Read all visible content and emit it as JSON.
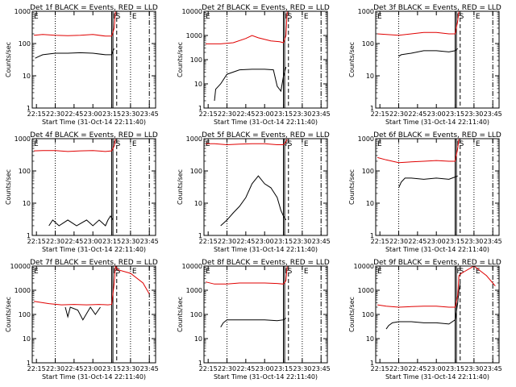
{
  "figure": {
    "ylabel": "Counts/sec",
    "xlabel": "Start Time (31-Oct-14 22:11:40)",
    "x_ticks": [
      "22:15",
      "22:30",
      "22:45",
      "23:00",
      "23:15",
      "23:30",
      "23:45"
    ],
    "y_ticks_3": [
      "1",
      "10",
      "100",
      "1000"
    ],
    "y_ticks_4": [
      "1",
      "10",
      "100",
      "1000",
      "10000"
    ],
    "marker_labels": [
      "E",
      "F",
      "S",
      "E"
    ],
    "colors": {
      "events": "#000000",
      "lld": "#e00000",
      "axes": "#000000"
    }
  },
  "chart_data": [
    {
      "type": "line",
      "title": "Det 1f BLACK = Events, RED = LLD",
      "y_scale": "log",
      "ylim": [
        1,
        1000
      ],
      "xlim": [
        "22:11:40",
        "23:50:00"
      ],
      "series": [
        {
          "name": "Events",
          "color": "#000000",
          "x": [
            "22:14",
            "22:17",
            "22:20",
            "22:30",
            "22:40",
            "22:50",
            "23:00",
            "23:10",
            "23:15",
            "23:16",
            "23:17"
          ],
          "y": [
            35,
            40,
            45,
            50,
            50,
            52,
            50,
            45,
            45,
            60,
            70
          ]
        },
        {
          "name": "LLD",
          "color": "#e00000",
          "x": [
            "22:13",
            "22:20",
            "22:30",
            "22:40",
            "22:50",
            "23:00",
            "23:10",
            "23:15",
            "23:17",
            "23:18",
            "23:19"
          ],
          "y": [
            180,
            190,
            180,
            175,
            180,
            190,
            170,
            170,
            300,
            1000,
            1000
          ]
        }
      ]
    },
    {
      "type": "line",
      "title": "Det 2f BLACK = Events, RED = LLD",
      "y_scale": "log",
      "ylim": [
        1,
        10000
      ],
      "xlim": [
        "22:11:40",
        "23:50:00"
      ],
      "series": [
        {
          "name": "Events",
          "color": "#000000",
          "x": [
            "22:20",
            "22:21",
            "22:25",
            "22:30",
            "22:40",
            "22:50",
            "23:00",
            "23:07",
            "23:10",
            "23:13",
            "23:15",
            "23:17"
          ],
          "y": [
            2,
            6,
            10,
            25,
            38,
            40,
            40,
            38,
            8,
            5,
            20,
            50
          ]
        },
        {
          "name": "LLD",
          "color": "#e00000",
          "x": [
            "22:13",
            "22:25",
            "22:35",
            "22:45",
            "22:50",
            "22:55",
            "23:05",
            "23:12",
            "23:15",
            "23:17",
            "23:18",
            "23:19"
          ],
          "y": [
            450,
            450,
            500,
            750,
            1000,
            800,
            600,
            550,
            500,
            1000,
            10000,
            10000
          ]
        }
      ]
    },
    {
      "type": "line",
      "title": "Det 3f BLACK = Events, RED = LLD",
      "y_scale": "log",
      "ylim": [
        1,
        1000
      ],
      "xlim": [
        "22:11:40",
        "23:50:00"
      ],
      "series": [
        {
          "name": "Events",
          "color": "#000000",
          "x": [
            "22:30",
            "22:32",
            "22:40",
            "22:50",
            "23:00",
            "23:10",
            "23:15",
            "23:17"
          ],
          "y": [
            40,
            45,
            50,
            60,
            60,
            55,
            60,
            70
          ]
        },
        {
          "name": "LLD",
          "color": "#e00000",
          "x": [
            "22:13",
            "22:20",
            "22:30",
            "22:40",
            "22:50",
            "23:00",
            "23:10",
            "23:15",
            "23:17",
            "23:18",
            "23:19"
          ],
          "y": [
            200,
            190,
            180,
            200,
            220,
            220,
            200,
            200,
            500,
            1000,
            1000
          ]
        }
      ]
    },
    {
      "type": "line",
      "title": "Det 4f BLACK = Events, RED = LLD",
      "y_scale": "log",
      "ylim": [
        1,
        1000
      ],
      "xlim": [
        "22:11:40",
        "23:50:00"
      ],
      "series": [
        {
          "name": "Events",
          "color": "#000000",
          "x": [
            "22:25",
            "22:28",
            "22:33",
            "22:40",
            "22:47",
            "22:55",
            "23:00",
            "23:05",
            "23:10",
            "23:12",
            "23:14",
            "23:16"
          ],
          "y": [
            2,
            3,
            2,
            3,
            2,
            3,
            2,
            3,
            2,
            3,
            4,
            3
          ]
        },
        {
          "name": "LLD",
          "color": "#e00000",
          "x": [
            "22:13",
            "22:20",
            "22:30",
            "22:40",
            "22:50",
            "23:00",
            "23:10",
            "23:15",
            "23:17",
            "23:18",
            "23:19"
          ],
          "y": [
            420,
            430,
            430,
            400,
            420,
            430,
            400,
            420,
            600,
            1000,
            1000
          ]
        }
      ]
    },
    {
      "type": "line",
      "title": "Det 5f BLACK = Events, RED = LLD",
      "y_scale": "log",
      "ylim": [
        1,
        1000
      ],
      "xlim": [
        "22:11:40",
        "23:50:00"
      ],
      "series": [
        {
          "name": "Events",
          "color": "#000000",
          "x": [
            "22:25",
            "22:30",
            "22:35",
            "22:40",
            "22:45",
            "22:50",
            "22:55",
            "23:00",
            "23:05",
            "23:10",
            "23:13",
            "23:15",
            "23:17"
          ],
          "y": [
            2,
            3,
            5,
            8,
            15,
            40,
            70,
            40,
            30,
            15,
            6,
            4,
            3
          ]
        },
        {
          "name": "LLD",
          "color": "#e00000",
          "x": [
            "22:13",
            "22:20",
            "22:30",
            "22:40",
            "22:50",
            "23:00",
            "23:10",
            "23:15",
            "23:17",
            "23:18",
            "23:19"
          ],
          "y": [
            700,
            700,
            650,
            680,
            700,
            700,
            650,
            650,
            800,
            1000,
            1000
          ]
        }
      ]
    },
    {
      "type": "line",
      "title": "Det 6f BLACK = Events, RED = LLD",
      "y_scale": "log",
      "ylim": [
        1,
        1000
      ],
      "xlim": [
        "22:11:40",
        "23:50:00"
      ],
      "series": [
        {
          "name": "Events",
          "color": "#000000",
          "x": [
            "22:30",
            "22:32",
            "22:35",
            "22:40",
            "22:50",
            "23:00",
            "23:10",
            "23:15",
            "23:17"
          ],
          "y": [
            30,
            45,
            60,
            60,
            55,
            60,
            55,
            65,
            70
          ]
        },
        {
          "name": "LLD",
          "color": "#e00000",
          "x": [
            "22:13",
            "22:20",
            "22:30",
            "22:40",
            "22:50",
            "23:00",
            "23:10",
            "23:15",
            "23:17",
            "23:18",
            "23:19"
          ],
          "y": [
            260,
            220,
            180,
            190,
            200,
            210,
            200,
            200,
            500,
            1000,
            1000
          ]
        }
      ]
    },
    {
      "type": "line",
      "title": "Det 7f BLACK = Events, RED = LLD",
      "y_scale": "log",
      "ylim": [
        1,
        10000
      ],
      "xlim": [
        "22:11:40",
        "23:50:00"
      ],
      "series": [
        {
          "name": "Events",
          "color": "#000000",
          "x": [
            "22:38",
            "22:40",
            "22:42",
            "22:48",
            "22:52",
            "22:58",
            "23:02",
            "23:06"
          ],
          "y": [
            200,
            80,
            200,
            150,
            60,
            200,
            100,
            200
          ]
        },
        {
          "name": "LLD",
          "color": "#e00000",
          "x": [
            "22:13",
            "22:25",
            "22:35",
            "22:45",
            "22:55",
            "23:05",
            "23:12",
            "23:15",
            "23:17",
            "23:18",
            "23:20",
            "23:30",
            "23:40",
            "23:45"
          ],
          "y": [
            350,
            280,
            250,
            260,
            250,
            260,
            250,
            260,
            2000,
            10000,
            7000,
            5000,
            2000,
            700
          ]
        }
      ]
    },
    {
      "type": "line",
      "title": "Det 8f BLACK = Events, RED = LLD",
      "y_scale": "log",
      "ylim": [
        1,
        10000
      ],
      "xlim": [
        "22:11:40",
        "23:50:00"
      ],
      "series": [
        {
          "name": "Events",
          "color": "#000000",
          "x": [
            "22:25",
            "22:27",
            "22:30",
            "22:40",
            "22:50",
            "23:00",
            "23:10",
            "23:15",
            "23:17"
          ],
          "y": [
            30,
            45,
            60,
            60,
            60,
            60,
            55,
            60,
            70
          ]
        },
        {
          "name": "LLD",
          "color": "#e00000",
          "x": [
            "22:13",
            "22:20",
            "22:30",
            "22:40",
            "22:50",
            "23:00",
            "23:10",
            "23:15",
            "23:17",
            "23:18",
            "23:19"
          ],
          "y": [
            2200,
            1800,
            1800,
            2000,
            2000,
            2000,
            1900,
            1800,
            2500,
            10000,
            10000
          ]
        }
      ]
    },
    {
      "type": "line",
      "title": "Det 9f BLACK = Events, RED = LLD",
      "y_scale": "log",
      "ylim": [
        1,
        10000
      ],
      "xlim": [
        "22:11:40",
        "23:50:00"
      ],
      "series": [
        {
          "name": "Events",
          "color": "#000000",
          "x": [
            "22:20",
            "22:22",
            "22:25",
            "22:30",
            "22:40",
            "22:50",
            "23:00",
            "23:10",
            "23:15",
            "23:17",
            "23:18",
            "23:19"
          ],
          "y": [
            25,
            35,
            45,
            50,
            50,
            45,
            45,
            40,
            60,
            300,
            1000,
            2000
          ]
        },
        {
          "name": "LLD",
          "color": "#e00000",
          "x": [
            "22:13",
            "22:20",
            "22:30",
            "22:40",
            "22:50",
            "23:00",
            "23:10",
            "23:15",
            "23:17",
            "23:18",
            "23:20",
            "23:30",
            "23:40",
            "23:47"
          ],
          "y": [
            250,
            220,
            200,
            210,
            220,
            220,
            200,
            200,
            600,
            4000,
            5000,
            10000,
            4000,
            1500
          ]
        }
      ]
    }
  ]
}
